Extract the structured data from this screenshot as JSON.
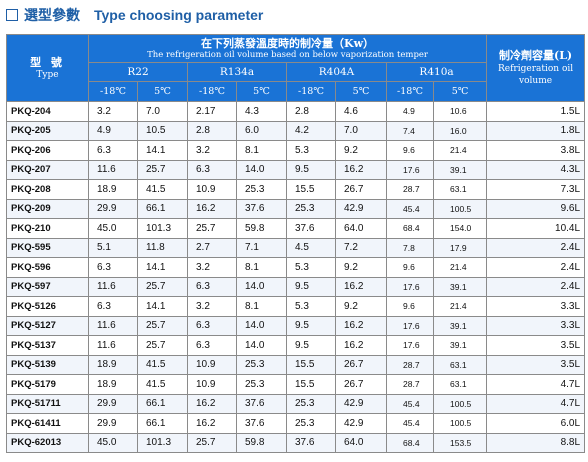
{
  "title": {
    "cn": "選型參數",
    "en": "Type choosing parameter"
  },
  "header": {
    "type_cn": "型 號",
    "type_en": "Type",
    "capacity_cn": "在下列蒸發溫度時的制冷量（Kw）",
    "capacity_en": "The refrigeration oil volume based on below vaporization temper",
    "oil_cn": "制冷劑容量(L)",
    "oil_en": "Refrigeration oil volume",
    "refrigerants": [
      "R22",
      "R134a",
      "R404A",
      "R410a"
    ],
    "temps": [
      "-18℃",
      "5℃",
      "-18℃",
      "5℃",
      "-18℃",
      "5℃",
      "-18℃",
      "5℃"
    ]
  },
  "rows": [
    {
      "model": "PKQ-204",
      "values": [
        "3.2",
        "7.0",
        "2.17",
        "4.3",
        "2.8",
        "4.6",
        "4.9",
        "10.6"
      ],
      "oil": "1.5L"
    },
    {
      "model": "PKQ-205",
      "values": [
        "4.9",
        "10.5",
        "2.8",
        "6.0",
        "4.2",
        "7.0",
        "7.4",
        "16.0"
      ],
      "oil": "1.8L"
    },
    {
      "model": "PKQ-206",
      "values": [
        "6.3",
        "14.1",
        "3.2",
        "8.1",
        "5.3",
        "9.2",
        "9.6",
        "21.4"
      ],
      "oil": "3.8L"
    },
    {
      "model": "PKQ-207",
      "values": [
        "11.6",
        "25.7",
        "6.3",
        "14.0",
        "9.5",
        "16.2",
        "17.6",
        "39.1"
      ],
      "oil": "4.3L"
    },
    {
      "model": "PKQ-208",
      "values": [
        "18.9",
        "41.5",
        "10.9",
        "25.3",
        "15.5",
        "26.7",
        "28.7",
        "63.1"
      ],
      "oil": "7.3L"
    },
    {
      "model": "PKQ-209",
      "values": [
        "29.9",
        "66.1",
        "16.2",
        "37.6",
        "25.3",
        "42.9",
        "45.4",
        "100.5"
      ],
      "oil": "9.6L"
    },
    {
      "model": "PKQ-210",
      "values": [
        "45.0",
        "101.3",
        "25.7",
        "59.8",
        "37.6",
        "64.0",
        "68.4",
        "154.0"
      ],
      "oil": "10.4L"
    },
    {
      "model": "PKQ-595",
      "values": [
        "5.1",
        "11.8",
        "2.7",
        "7.1",
        "4.5",
        "7.2",
        "7.8",
        "17.9"
      ],
      "oil": "2.4L"
    },
    {
      "model": "PKQ-596",
      "values": [
        "6.3",
        "14.1",
        "3.2",
        "8.1",
        "5.3",
        "9.2",
        "9.6",
        "21.4"
      ],
      "oil": "2.4L"
    },
    {
      "model": "PKQ-597",
      "values": [
        "11.6",
        "25.7",
        "6.3",
        "14.0",
        "9.5",
        "16.2",
        "17.6",
        "39.1"
      ],
      "oil": "2.4L"
    },
    {
      "model": "PKQ-5126",
      "values": [
        "6.3",
        "14.1",
        "3.2",
        "8.1",
        "5.3",
        "9.2",
        "9.6",
        "21.4"
      ],
      "oil": "3.3L"
    },
    {
      "model": "PKQ-5127",
      "values": [
        "11.6",
        "25.7",
        "6.3",
        "14.0",
        "9.5",
        "16.2",
        "17.6",
        "39.1"
      ],
      "oil": "3.3L"
    },
    {
      "model": "PKQ-5137",
      "values": [
        "11.6",
        "25.7",
        "6.3",
        "14.0",
        "9.5",
        "16.2",
        "17.6",
        "39.1"
      ],
      "oil": "3.5L"
    },
    {
      "model": "PKQ-5139",
      "values": [
        "18.9",
        "41.5",
        "10.9",
        "25.3",
        "15.5",
        "26.7",
        "28.7",
        "63.1"
      ],
      "oil": "3.5L"
    },
    {
      "model": "PKQ-5179",
      "values": [
        "18.9",
        "41.5",
        "10.9",
        "25.3",
        "15.5",
        "26.7",
        "28.7",
        "63.1"
      ],
      "oil": "4.7L"
    },
    {
      "model": "PKQ-51711",
      "values": [
        "29.9",
        "66.1",
        "16.2",
        "37.6",
        "25.3",
        "42.9",
        "45.4",
        "100.5"
      ],
      "oil": "4.7L"
    },
    {
      "model": "PKQ-61411",
      "values": [
        "29.9",
        "66.1",
        "16.2",
        "37.6",
        "25.3",
        "42.9",
        "45.4",
        "100.5"
      ],
      "oil": "6.0L"
    },
    {
      "model": "PKQ-62013",
      "values": [
        "45.0",
        "101.3",
        "25.7",
        "59.8",
        "37.6",
        "64.0",
        "68.4",
        "153.5"
      ],
      "oil": "8.8L"
    }
  ]
}
